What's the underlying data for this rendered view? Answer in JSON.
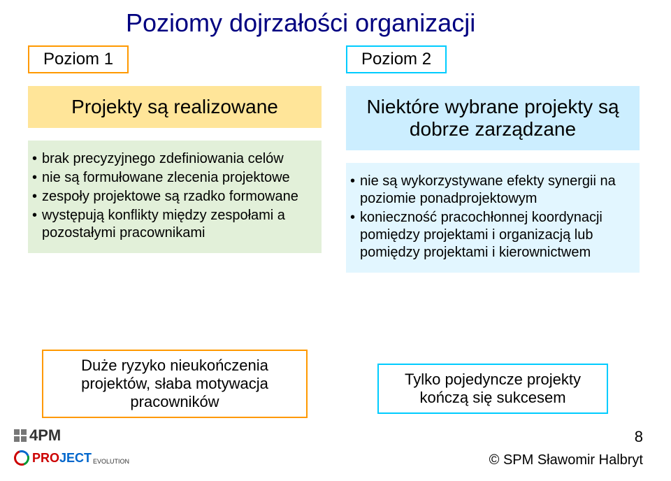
{
  "title": "Poziomy dojrzałości organizacji",
  "left": {
    "level_label": "Poziom 1",
    "state": "Projekty są realizowane",
    "bullets": [
      "brak precyzyjnego zdefiniowania celów",
      "nie są formułowane zlecenia projektowe",
      "zespoły projektowe są rzadko formowane",
      "występują konflikty między zespołami a pozostałymi pracownikami"
    ],
    "risk": "Duże ryzyko nieukończenia projektów, słaba motywacja pracowników"
  },
  "right": {
    "level_label": "Poziom 2",
    "state": "Niektóre wybrane projekty są dobrze zarządzane",
    "bullets": [
      " nie są wykorzystywane efekty synergii na poziomie ponadprojektowym",
      "konieczność pracochłonnej koordynacji pomiędzy projektami i organizacją lub pomiędzy projektami i kierownictwem"
    ],
    "risk": "Tylko pojedyncze projekty kończą się sukcesem"
  },
  "colors": {
    "orange_border": "#ff9900",
    "cyan_border": "#00ccff",
    "orange_fill": "#ffe599",
    "cyan_fill": "#cceeff",
    "green_fill": "#e2f0d9",
    "ltcyan_fill": "#e2f6ff",
    "title_color": "#000080"
  },
  "footer": {
    "logo1": "4PM",
    "logo2a": "PRO",
    "logo2b": "JECT",
    "logo2sub": "EVOLUTION",
    "page": "8",
    "copyright": "© SPM Sławomir Halbryt"
  }
}
